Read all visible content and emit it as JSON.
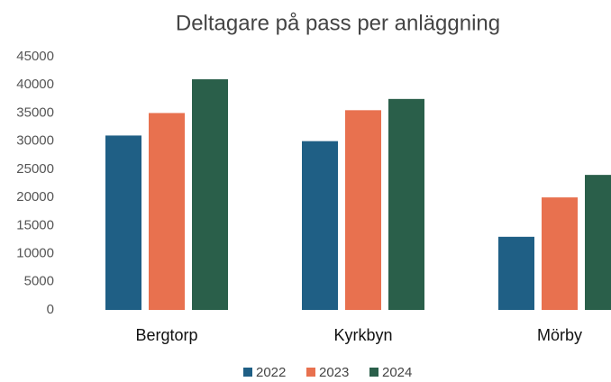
{
  "chart_data": {
    "type": "bar",
    "title": "Deltagare på pass per anläggning",
    "categories": [
      "Bergtorp",
      "Kyrkbyn",
      "Mörby"
    ],
    "series": [
      {
        "name": "2022",
        "color": "#1f5f85",
        "values": [
          31000,
          30000,
          13000
        ]
      },
      {
        "name": "2023",
        "color": "#e8714f",
        "values": [
          35000,
          35500,
          20000
        ]
      },
      {
        "name": "2024",
        "color": "#2a5f4a",
        "values": [
          41000,
          37500,
          24000
        ]
      }
    ],
    "ylim": [
      0,
      45000
    ],
    "yticks": [
      0,
      5000,
      10000,
      15000,
      20000,
      25000,
      30000,
      35000,
      40000,
      45000
    ],
    "grid": false,
    "legend": "bottom"
  }
}
